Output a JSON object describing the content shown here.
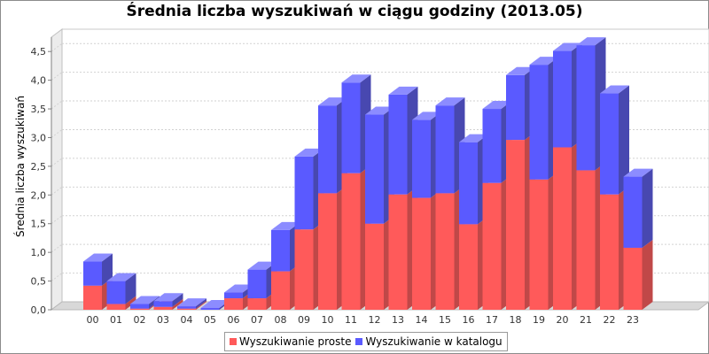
{
  "colors": {
    "simple_front": "#ff5a5a",
    "simple_top": "#ff8c8c",
    "simple_side": "#c04848",
    "catalog_front": "#5a5aff",
    "catalog_top": "#8c8cff",
    "catalog_side": "#4848b0",
    "grid": "#d2d2d2",
    "wall": "#ececec",
    "floor": "#d8d8d8"
  },
  "chart_data": {
    "type": "bar",
    "stacked": true,
    "three_d": true,
    "title": "Średnia liczba wyszukiwań w ciągu godziny (2013.05)",
    "xlabel": "",
    "ylabel": "Średnia liczba wyszukiwań",
    "ylim": [
      0,
      4.75
    ],
    "yticks": [
      0.0,
      0.5,
      1.0,
      1.5,
      2.0,
      2.5,
      3.0,
      3.5,
      4.0,
      4.5
    ],
    "ytick_labels": [
      "0,0",
      "0,5",
      "1,0",
      "1,5",
      "2,0",
      "2,5",
      "3,0",
      "3,5",
      "4,0",
      "4,5"
    ],
    "grid": true,
    "legend_position": "bottom",
    "categories": [
      "00",
      "01",
      "02",
      "03",
      "04",
      "05",
      "06",
      "07",
      "08",
      "09",
      "10",
      "11",
      "12",
      "13",
      "14",
      "15",
      "16",
      "17",
      "18",
      "19",
      "20",
      "21",
      "22",
      "23"
    ],
    "series": [
      {
        "name": "Wyszukiwanie proste",
        "values": [
          0.42,
          0.1,
          0.02,
          0.05,
          0.02,
          0.0,
          0.2,
          0.2,
          0.67,
          1.4,
          2.03,
          2.38,
          1.5,
          2.01,
          1.95,
          2.03,
          1.49,
          2.21,
          2.96,
          2.27,
          2.83,
          2.43,
          2.01,
          1.08
        ]
      },
      {
        "name": "Wyszukiwanie w katalogu",
        "values": [
          0.42,
          0.4,
          0.08,
          0.1,
          0.04,
          0.03,
          0.1,
          0.5,
          0.72,
          1.27,
          1.53,
          1.58,
          1.9,
          1.74,
          1.36,
          1.53,
          1.43,
          1.29,
          1.13,
          2.0,
          1.68,
          2.18,
          1.76,
          1.24
        ]
      }
    ]
  }
}
